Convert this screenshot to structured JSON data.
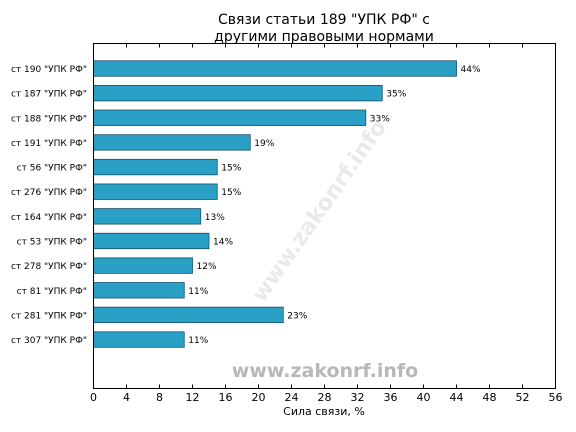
{
  "chart_data": {
    "type": "bar",
    "orientation": "horizontal",
    "title": "Связи статьи 189 \"УПК РФ\" с\nдругими правовыми нормами",
    "xlabel": "Сила связи, %",
    "ylabel": "",
    "xlim": [
      0,
      56
    ],
    "xticks": [
      0,
      4,
      8,
      12,
      16,
      20,
      24,
      28,
      32,
      36,
      40,
      44,
      48,
      52,
      56
    ],
    "grid": false,
    "categories": [
      "ст 190 \"УПК РФ\"",
      "ст 187 \"УПК РФ\"",
      "ст 188 \"УПК РФ\"",
      "ст 191 \"УПК РФ\"",
      "ст 56 \"УПК РФ\"",
      "ст 276 \"УПК РФ\"",
      "ст 164 \"УПК РФ\"",
      "ст 53 \"УПК РФ\"",
      "ст 278 \"УПК РФ\"",
      "ст 81 \"УПК РФ\"",
      "ст 281 \"УПК РФ\"",
      "ст 307 \"УПК РФ\""
    ],
    "values": [
      44,
      35,
      33,
      19,
      15,
      15,
      13,
      14,
      12,
      11,
      23,
      11
    ],
    "labels": [
      "44%",
      "35%",
      "33%",
      "19%",
      "15%",
      "15%",
      "13%",
      "14%",
      "12%",
      "11%",
      "23%",
      "11%"
    ],
    "bar_color": "#2aa0c6",
    "bar_edge_color": "#1a4f66",
    "watermark": "www.zakonrf.info"
  }
}
